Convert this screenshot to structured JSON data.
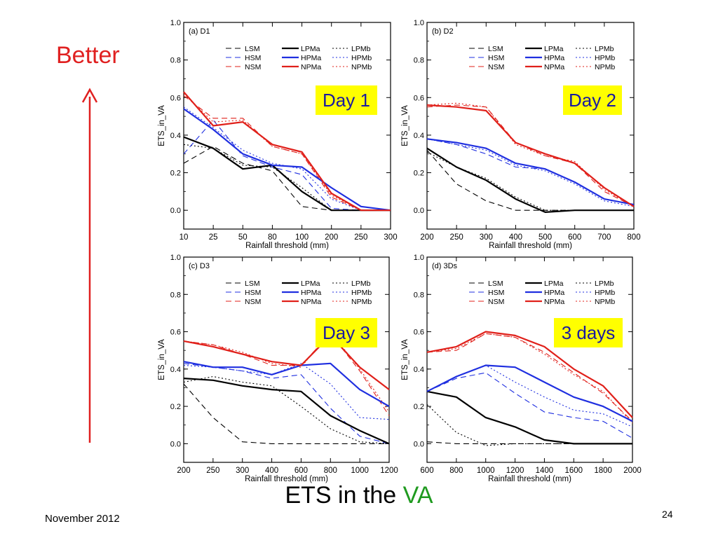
{
  "slide": {
    "title_prefix": "ETS in the ",
    "title_highlight": "VA",
    "better_label": "Better",
    "footer_date": "November 2012",
    "page_number": "24",
    "colors": {
      "better": "#e02020",
      "highlight": "#1f9a1f",
      "day_box": "#ffff00",
      "day_text": "#1a1aa0"
    }
  },
  "legend": {
    "entries": [
      {
        "name": "LSM",
        "color": "#000000",
        "style": "dashed",
        "weight": "thin"
      },
      {
        "name": "LPMa",
        "color": "#000000",
        "style": "solid",
        "weight": "thick"
      },
      {
        "name": "LPMb",
        "color": "#000000",
        "style": "dotted",
        "weight": "thin"
      },
      {
        "name": "HSM",
        "color": "#1f2fe0",
        "style": "dashed",
        "weight": "thin"
      },
      {
        "name": "HPMa",
        "color": "#1f2fe0",
        "style": "solid",
        "weight": "thick"
      },
      {
        "name": "HPMb",
        "color": "#1f2fe0",
        "style": "dotted",
        "weight": "thin"
      },
      {
        "name": "NSM",
        "color": "#e0201a",
        "style": "dashed",
        "weight": "thin"
      },
      {
        "name": "NPMa",
        "color": "#e0201a",
        "style": "solid",
        "weight": "thick"
      },
      {
        "name": "NPMb",
        "color": "#e0201a",
        "style": "dotted",
        "weight": "thin"
      }
    ]
  },
  "chart_data": [
    {
      "type": "line",
      "panel_label": "(a) D1",
      "day_label": "Day 1",
      "xlabel": "Rainfall threshold (mm)",
      "ylabel": "ETS_in_VA",
      "categories": [
        "10",
        "25",
        "50",
        "80",
        "100",
        "200",
        "250",
        "300"
      ],
      "ylim": [
        -0.1,
        1.0
      ],
      "yticks": [
        "0.0",
        "0.2",
        "0.4",
        "0.6",
        "0.8",
        "1.0"
      ],
      "series": [
        {
          "name": "LSM",
          "values": [
            0.25,
            0.34,
            0.25,
            0.21,
            0.02,
            0.0,
            0.0,
            0.0
          ]
        },
        {
          "name": "LPMa",
          "values": [
            0.39,
            0.33,
            0.22,
            0.24,
            0.1,
            0.0,
            0.0,
            0.0
          ]
        },
        {
          "name": "LPMb",
          "values": [
            0.35,
            0.33,
            0.24,
            0.23,
            0.12,
            0.0,
            0.0,
            0.0
          ]
        },
        {
          "name": "HSM",
          "values": [
            0.3,
            0.48,
            0.29,
            0.23,
            0.19,
            0.01,
            0.0,
            0.0
          ]
        },
        {
          "name": "HPMa",
          "values": [
            0.54,
            0.43,
            0.3,
            0.24,
            0.23,
            0.12,
            0.02,
            0.0
          ]
        },
        {
          "name": "HPMb",
          "values": [
            0.55,
            0.44,
            0.32,
            0.25,
            0.22,
            0.06,
            0.0,
            0.0
          ]
        },
        {
          "name": "NSM",
          "values": [
            0.61,
            0.49,
            0.49,
            0.34,
            0.3,
            0.07,
            0.0,
            0.0
          ]
        },
        {
          "name": "NPMa",
          "values": [
            0.63,
            0.45,
            0.47,
            0.35,
            0.31,
            0.09,
            0.0,
            0.0
          ]
        },
        {
          "name": "NPMb",
          "values": [
            0.62,
            0.47,
            0.48,
            0.34,
            0.3,
            0.08,
            0.0,
            0.0
          ]
        }
      ]
    },
    {
      "type": "line",
      "panel_label": "(b) D2",
      "day_label": "Day 2",
      "xlabel": "Rainfall threshold (mm)",
      "ylabel": "ETS_in_VA",
      "categories": [
        "200",
        "250",
        "300",
        "400",
        "500",
        "600",
        "700",
        "800"
      ],
      "ylim": [
        -0.1,
        1.0
      ],
      "yticks": [
        "0.0",
        "0.2",
        "0.4",
        "0.6",
        "0.8",
        "1.0"
      ],
      "series": [
        {
          "name": "LSM",
          "values": [
            0.32,
            0.14,
            0.05,
            0.0,
            0.0,
            0.0,
            0.0,
            0.0
          ]
        },
        {
          "name": "LPMa",
          "values": [
            0.33,
            0.23,
            0.16,
            0.06,
            -0.01,
            0.0,
            0.0,
            0.0
          ]
        },
        {
          "name": "LPMb",
          "values": [
            0.31,
            0.23,
            0.17,
            0.07,
            0.0,
            0.0,
            0.0,
            0.0
          ]
        },
        {
          "name": "HSM",
          "values": [
            0.38,
            0.35,
            0.3,
            0.23,
            0.22,
            0.15,
            0.06,
            0.03
          ]
        },
        {
          "name": "HPMa",
          "values": [
            0.38,
            0.36,
            0.33,
            0.25,
            0.22,
            0.15,
            0.06,
            0.03
          ]
        },
        {
          "name": "HPMb",
          "values": [
            0.38,
            0.35,
            0.32,
            0.24,
            0.21,
            0.14,
            0.05,
            0.02
          ]
        },
        {
          "name": "NSM",
          "values": [
            0.55,
            0.56,
            0.55,
            0.36,
            0.29,
            0.25,
            0.1,
            0.02
          ]
        },
        {
          "name": "NPMa",
          "values": [
            0.56,
            0.55,
            0.53,
            0.36,
            0.3,
            0.25,
            0.12,
            0.02
          ]
        },
        {
          "name": "NPMb",
          "values": [
            0.56,
            0.57,
            0.55,
            0.35,
            0.29,
            0.26,
            0.11,
            0.02
          ]
        }
      ]
    },
    {
      "type": "line",
      "panel_label": "(c) D3",
      "day_label": "Day 3",
      "xlabel": "Rainfall threshold (mm)",
      "ylabel": "ETS_in_VA",
      "categories": [
        "200",
        "250",
        "300",
        "400",
        "600",
        "800",
        "1000",
        "1200"
      ],
      "ylim": [
        -0.1,
        1.0
      ],
      "yticks": [
        "0.0",
        "0.2",
        "0.4",
        "0.6",
        "0.8",
        "1.0"
      ],
      "series": [
        {
          "name": "LSM",
          "values": [
            0.32,
            0.14,
            0.01,
            0.0,
            0.0,
            0.0,
            0.0,
            0.0
          ]
        },
        {
          "name": "LPMa",
          "values": [
            0.35,
            0.34,
            0.31,
            0.29,
            0.28,
            0.15,
            0.07,
            0.0
          ]
        },
        {
          "name": "LPMb",
          "values": [
            0.33,
            0.36,
            0.33,
            0.31,
            0.2,
            0.08,
            0.01,
            0.0
          ]
        },
        {
          "name": "HSM",
          "values": [
            0.43,
            0.41,
            0.39,
            0.35,
            0.37,
            0.19,
            0.04,
            0.0
          ]
        },
        {
          "name": "HPMa",
          "values": [
            0.44,
            0.41,
            0.41,
            0.37,
            0.42,
            0.43,
            0.29,
            0.2
          ]
        },
        {
          "name": "HPMb",
          "values": [
            0.42,
            0.41,
            0.39,
            0.37,
            0.43,
            0.32,
            0.14,
            0.13
          ]
        },
        {
          "name": "NSM",
          "values": [
            0.55,
            0.53,
            0.48,
            0.42,
            0.42,
            0.59,
            0.39,
            0.15
          ]
        },
        {
          "name": "NPMa",
          "values": [
            0.55,
            0.52,
            0.48,
            0.44,
            0.42,
            0.58,
            0.41,
            0.29
          ]
        },
        {
          "name": "NPMb",
          "values": [
            0.55,
            0.53,
            0.49,
            0.43,
            0.41,
            0.6,
            0.4,
            0.17
          ]
        }
      ]
    },
    {
      "type": "line",
      "panel_label": "(d) 3Ds",
      "day_label": "3 days",
      "xlabel": "Rainfall threshold (mm)",
      "ylabel": "ETS_in_VA",
      "categories": [
        "600",
        "800",
        "1000",
        "1200",
        "1400",
        "1600",
        "1800",
        "2000"
      ],
      "ylim": [
        -0.1,
        1.0
      ],
      "yticks": [
        "0.0",
        "0.2",
        "0.4",
        "0.6",
        "0.8",
        "1.0"
      ],
      "series": [
        {
          "name": "LSM",
          "values": [
            0.01,
            0.0,
            0.0,
            0.0,
            0.0,
            0.0,
            0.0,
            0.0
          ]
        },
        {
          "name": "LPMa",
          "values": [
            0.28,
            0.25,
            0.14,
            0.09,
            0.02,
            0.0,
            0.0,
            0.0
          ]
        },
        {
          "name": "LPMb",
          "values": [
            0.21,
            0.06,
            -0.01,
            0.0,
            0.0,
            0.0,
            0.0,
            0.0
          ]
        },
        {
          "name": "HSM",
          "values": [
            0.28,
            0.35,
            0.38,
            0.27,
            0.17,
            0.14,
            0.12,
            0.03
          ]
        },
        {
          "name": "HPMa",
          "values": [
            0.28,
            0.36,
            0.42,
            0.41,
            0.33,
            0.25,
            0.2,
            0.12
          ]
        },
        {
          "name": "HPMb",
          "values": [
            0.28,
            0.36,
            0.42,
            0.33,
            0.25,
            0.18,
            0.16,
            0.09
          ]
        },
        {
          "name": "NSM",
          "values": [
            0.49,
            0.5,
            0.59,
            0.57,
            0.49,
            0.38,
            0.27,
            0.12
          ]
        },
        {
          "name": "NPMa",
          "values": [
            0.49,
            0.52,
            0.6,
            0.58,
            0.52,
            0.4,
            0.31,
            0.14
          ]
        },
        {
          "name": "NPMb",
          "values": [
            0.49,
            0.51,
            0.59,
            0.57,
            0.48,
            0.37,
            0.28,
            0.11
          ]
        }
      ]
    }
  ]
}
